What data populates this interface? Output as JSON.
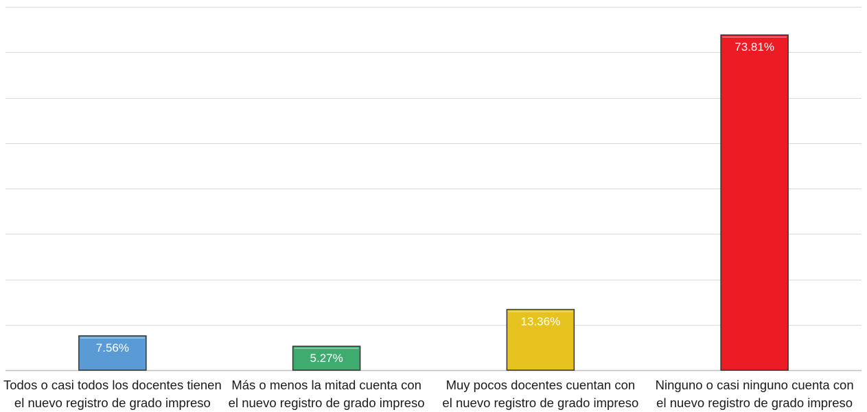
{
  "chart_data": {
    "type": "bar",
    "categories": [
      [
        "Todos o casi todos los docentes tienen",
        "el nuevo registro de grado impreso"
      ],
      [
        "Más o menos la mitad cuenta con",
        "el nuevo registro de grado impreso"
      ],
      [
        "Muy pocos docentes cuentan con",
        "el nuevo registro de grado impreso"
      ],
      [
        "Ninguno o casi ninguno cuenta con",
        "el nuevo registro de grado impreso"
      ]
    ],
    "values": [
      7.56,
      5.27,
      13.36,
      73.81
    ],
    "data_labels": [
      "7.56%",
      "5.27%",
      "13.36%",
      "73.81%"
    ],
    "colors": [
      "#5b9bd5",
      "#3dac6e",
      "#e6c21f",
      "#ed1c24"
    ],
    "ylim": [
      0,
      80
    ],
    "y_gridlines": [
      0,
      10,
      20,
      30,
      40,
      50,
      60,
      70,
      80
    ],
    "grid": true,
    "legend": "none"
  }
}
